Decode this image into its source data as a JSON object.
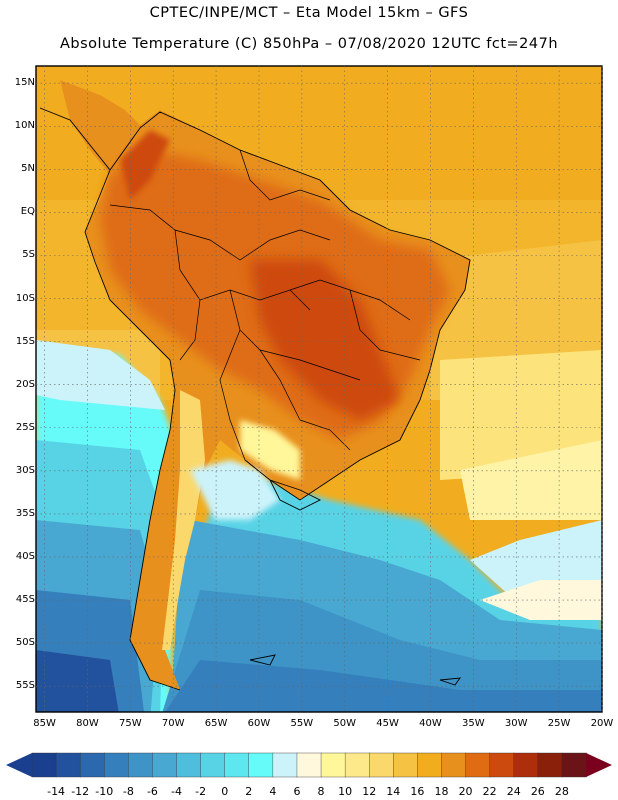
{
  "header": {
    "line1": "CPTEC/INPE/MCT –  Eta Model 15km – GFS",
    "line2": "Absolute Temperature (C) 850hPa – 07/08/2020 12UTC fct=247h"
  },
  "axes": {
    "lat_labels": [
      "15N",
      "10N",
      "5N",
      "EQ",
      "5S",
      "10S",
      "15S",
      "20S",
      "25S",
      "30S",
      "35S",
      "40S",
      "45S",
      "50S",
      "55S"
    ],
    "lon_labels": [
      "85W",
      "80W",
      "75W",
      "70W",
      "65W",
      "60W",
      "55W",
      "50W",
      "45W",
      "40W",
      "35W",
      "30W",
      "25W",
      "20W"
    ]
  },
  "colorbar": {
    "ticks": [
      "-14",
      "-12",
      "-10",
      "-8",
      "-6",
      "-4",
      "-2",
      "0",
      "2",
      "4",
      "6",
      "8",
      "10",
      "12",
      "14",
      "16",
      "18",
      "20",
      "22",
      "24",
      "26",
      "28"
    ],
    "colors": [
      "#1b3f8f",
      "#22529e",
      "#2c68ad",
      "#357fbc",
      "#3e93c7",
      "#48a8d2",
      "#4fbddc",
      "#58d3e6",
      "#5ee7ee",
      "#66fbf8",
      "#ccf3fa",
      "#fff8dc",
      "#fff79a",
      "#fee98a",
      "#fbd86b",
      "#f6c243",
      "#f2ad1f",
      "#e8901d",
      "#df6c13",
      "#cd4a0e",
      "#ad2e0a",
      "#8a200a",
      "#6a1418"
    ],
    "low_arrow_color": "#1b3f8f",
    "high_arrow_color": "#7b001e"
  },
  "map": {
    "ocean_north_color": "#f1ad1f",
    "ocean_south_color": "#4a8ac6",
    "land_hot_color": "#cf4f0f"
  }
}
